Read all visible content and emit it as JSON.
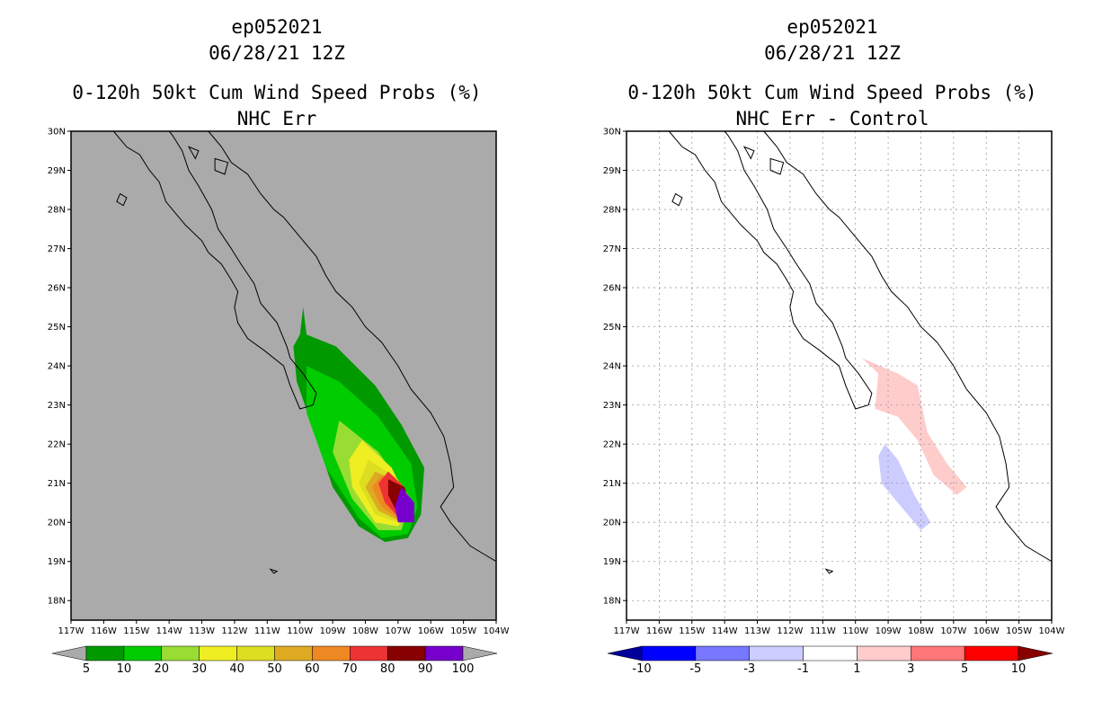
{
  "left": {
    "title_lines": [
      "ep052021",
      "06/28/21 12Z",
      "0-120h 50kt Cum Wind Speed Probs (%)",
      "NHC Err"
    ],
    "chart_data": {
      "type": "heatmap",
      "title": "0-120h 50kt Cum Wind Speed Probs (%)",
      "subtitle": "NHC Err",
      "storm_id": "ep052021",
      "valid_time": "06/28/21 12Z",
      "xlim": [
        -117,
        -104
      ],
      "ylim": [
        17.5,
        30
      ],
      "x_ticks": [
        "117W",
        "116W",
        "115W",
        "114W",
        "113W",
        "112W",
        "111W",
        "110W",
        "109W",
        "108W",
        "107W",
        "106W",
        "105W",
        "104W"
      ],
      "y_ticks": [
        "18N",
        "19N",
        "20N",
        "21N",
        "22N",
        "23N",
        "24N",
        "25N",
        "26N",
        "27N",
        "28N",
        "29N",
        "30N"
      ],
      "background_color": "#aaaaaa",
      "colorbar": {
        "levels": [
          "5",
          "10",
          "20",
          "30",
          "40",
          "50",
          "60",
          "70",
          "80",
          "90",
          "100"
        ],
        "colors": [
          "#009900",
          "#00cc00",
          "#99dd33",
          "#eeee22",
          "#dddd22",
          "#ddaa22",
          "#ee8822",
          "#ee3333",
          "#880000",
          "#7700cc"
        ],
        "below_color": "#aaaaaa",
        "above_color": "#aaaaaa"
      },
      "contours": [
        {
          "level": 5,
          "color": "#009900",
          "polygon": [
            [
              -109.9,
              25.5
            ],
            [
              -109.8,
              24.8
            ],
            [
              -108.9,
              24.5
            ],
            [
              -107.7,
              23.5
            ],
            [
              -106.9,
              22.5
            ],
            [
              -106.2,
              21.4
            ],
            [
              -106.3,
              20.2
            ],
            [
              -106.7,
              19.6
            ],
            [
              -107.4,
              19.5
            ],
            [
              -108.2,
              19.9
            ],
            [
              -109.0,
              20.9
            ],
            [
              -109.6,
              22.4
            ],
            [
              -110.1,
              23.6
            ],
            [
              -110.2,
              24.5
            ],
            [
              -110.0,
              24.8
            ]
          ]
        },
        {
          "level": 10,
          "color": "#00cc00",
          "polygon": [
            [
              -109.8,
              24.0
            ],
            [
              -108.8,
              23.6
            ],
            [
              -107.6,
              22.7
            ],
            [
              -106.6,
              21.5
            ],
            [
              -106.4,
              20.4
            ],
            [
              -106.7,
              19.7
            ],
            [
              -107.5,
              19.6
            ],
            [
              -108.2,
              20.1
            ],
            [
              -109.2,
              21.4
            ],
            [
              -109.8,
              22.8
            ]
          ]
        },
        {
          "level": 20,
          "color": "#99dd33",
          "polygon": [
            [
              -108.8,
              22.6
            ],
            [
              -107.6,
              21.8
            ],
            [
              -106.6,
              20.6
            ],
            [
              -106.9,
              19.8
            ],
            [
              -107.6,
              19.8
            ],
            [
              -108.4,
              20.6
            ],
            [
              -109.0,
              21.8
            ]
          ]
        },
        {
          "level": 30,
          "color": "#eeee22",
          "polygon": [
            [
              -108.1,
              22.1
            ],
            [
              -107.2,
              21.4
            ],
            [
              -106.6,
              20.4
            ],
            [
              -107.0,
              19.9
            ],
            [
              -107.7,
              20.0
            ],
            [
              -108.4,
              20.9
            ],
            [
              -108.5,
              21.6
            ]
          ]
        },
        {
          "level": 40,
          "color": "#dddd22",
          "polygon": [
            [
              -107.9,
              21.6
            ],
            [
              -107.0,
              21.1
            ],
            [
              -106.6,
              20.3
            ],
            [
              -107.0,
              20.0
            ],
            [
              -107.7,
              20.2
            ],
            [
              -108.2,
              21.0
            ]
          ]
        },
        {
          "level": 50,
          "color": "#ddaa22",
          "polygon": [
            [
              -107.7,
              21.3
            ],
            [
              -106.9,
              21.0
            ],
            [
              -106.6,
              20.3
            ],
            [
              -107.0,
              20.05
            ],
            [
              -107.6,
              20.3
            ],
            [
              -108.0,
              20.9
            ]
          ]
        },
        {
          "level": 60,
          "color": "#ee8822",
          "polygon": [
            [
              -107.5,
              21.2
            ],
            [
              -106.9,
              20.9
            ],
            [
              -106.6,
              20.3
            ],
            [
              -107.0,
              20.1
            ],
            [
              -107.5,
              20.4
            ],
            [
              -107.8,
              20.9
            ]
          ]
        },
        {
          "level": 70,
          "color": "#ee3333",
          "polygon": [
            [
              -107.3,
              21.3
            ],
            [
              -106.8,
              20.9
            ],
            [
              -106.6,
              20.3
            ],
            [
              -107.0,
              20.15
            ],
            [
              -107.4,
              20.5
            ],
            [
              -107.6,
              21.0
            ]
          ]
        },
        {
          "level": 80,
          "color": "#880000",
          "polygon": [
            [
              -107.3,
              21.1
            ],
            [
              -106.8,
              20.9
            ],
            [
              -106.6,
              20.3
            ],
            [
              -107.0,
              20.2
            ],
            [
              -107.3,
              20.7
            ]
          ]
        },
        {
          "level": 90,
          "color": "#7700cc",
          "polygon": [
            [
              -106.9,
              20.9
            ],
            [
              -106.5,
              20.5
            ],
            [
              -106.5,
              20.0
            ],
            [
              -107.0,
              20.0
            ],
            [
              -107.1,
              20.4
            ]
          ]
        }
      ]
    }
  },
  "right": {
    "title_lines": [
      "ep052021",
      "06/28/21 12Z",
      "0-120h 50kt Cum Wind Speed Probs (%)",
      "NHC Err - Control"
    ],
    "chart_data": {
      "type": "heatmap",
      "title": "0-120h 50kt Cum Wind Speed Probs (%)",
      "subtitle": "NHC Err - Control",
      "storm_id": "ep052021",
      "valid_time": "06/28/21 12Z",
      "xlim": [
        -117,
        -104
      ],
      "ylim": [
        17.5,
        30
      ],
      "x_ticks": [
        "117W",
        "116W",
        "115W",
        "114W",
        "113W",
        "112W",
        "111W",
        "110W",
        "109W",
        "108W",
        "107W",
        "106W",
        "105W",
        "104W"
      ],
      "y_ticks": [
        "18N",
        "19N",
        "20N",
        "21N",
        "22N",
        "23N",
        "24N",
        "25N",
        "26N",
        "27N",
        "28N",
        "29N",
        "30N"
      ],
      "background_color": "#ffffff",
      "grid": true,
      "colorbar": {
        "levels": [
          "-10",
          "-5",
          "-3",
          "-1",
          "1",
          "3",
          "5",
          "10"
        ],
        "colors": [
          "#0000ff",
          "#7777ff",
          "#ccccff",
          "#ffffff",
          "#ffcccc",
          "#ff7777",
          "#ff0000"
        ],
        "below_color": "#000099",
        "above_color": "#880000"
      },
      "contours": [
        {
          "level": 1,
          "color": "#ffcccc",
          "polygon": [
            [
              -109.8,
              24.2
            ],
            [
              -108.7,
              23.8
            ],
            [
              -108.1,
              23.5
            ],
            [
              -107.8,
              22.3
            ],
            [
              -107.2,
              21.5
            ],
            [
              -106.6,
              20.9
            ],
            [
              -106.9,
              20.7
            ],
            [
              -107.6,
              21.2
            ],
            [
              -108.1,
              22.1
            ],
            [
              -108.7,
              22.7
            ],
            [
              -109.4,
              22.9
            ],
            [
              -109.3,
              23.8
            ]
          ]
        },
        {
          "level": -1,
          "color": "#ccccff",
          "polygon": [
            [
              -109.1,
              22.0
            ],
            [
              -108.7,
              21.6
            ],
            [
              -108.2,
              20.7
            ],
            [
              -107.7,
              20.0
            ],
            [
              -108.0,
              19.8
            ],
            [
              -108.6,
              20.4
            ],
            [
              -109.2,
              21.0
            ],
            [
              -109.3,
              21.7
            ]
          ]
        }
      ]
    }
  }
}
